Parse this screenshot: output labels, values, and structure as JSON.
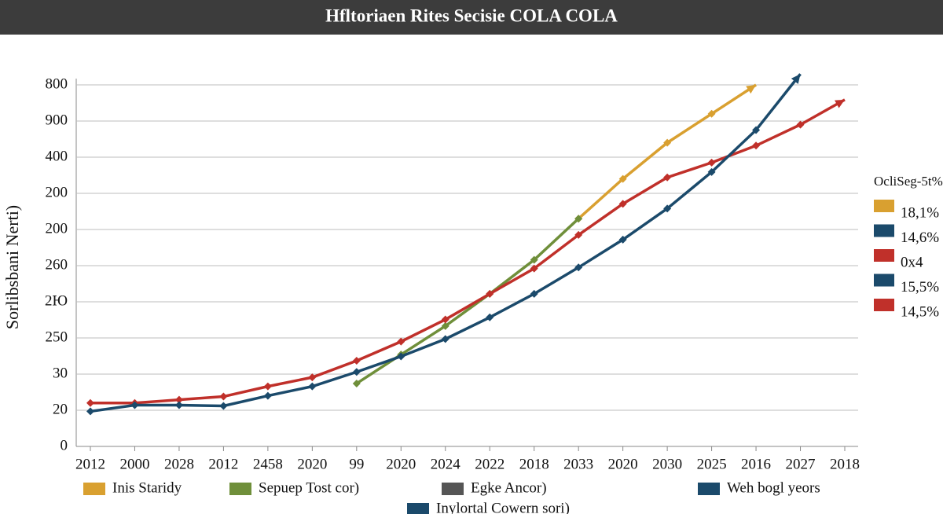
{
  "chart_data": {
    "type": "line",
    "title": "Hfltoriaen Rites Secisie COLA COLA",
    "y_label": "Sorlibsbani Nerti)",
    "categories": [
      "2012",
      "2000",
      "2028",
      "2012",
      "2458",
      "2020",
      "99",
      "2020",
      "2024",
      "2022",
      "2018",
      "2033",
      "2020",
      "2030",
      "2025",
      "2016",
      "2027",
      "2018"
    ],
    "ylim": [
      0,
      10.5
    ],
    "yticks": [
      {
        "value": 0,
        "label": "0"
      },
      {
        "value": 1,
        "label": "20"
      },
      {
        "value": 2,
        "label": "30"
      },
      {
        "value": 3,
        "label": "250"
      },
      {
        "value": 4,
        "label": "2Ю"
      },
      {
        "value": 5,
        "label": "260"
      },
      {
        "value": 6,
        "label": "200"
      },
      {
        "value": 7,
        "label": "200"
      },
      {
        "value": 8,
        "label": "400"
      },
      {
        "value": 9,
        "label": "900"
      },
      {
        "value": 10,
        "label": "800"
      }
    ],
    "grid": true,
    "series": [
      {
        "name": "Inis Staridy",
        "color": "#d9a030",
        "values": [
          null,
          null,
          null,
          null,
          null,
          null,
          null,
          null,
          null,
          null,
          null,
          6.3,
          7.4,
          8.4,
          9.2,
          10.0,
          null,
          null
        ]
      },
      {
        "name": "Sepuep Tost cor)",
        "color": "#6f8f3a",
        "values": [
          null,
          null,
          null,
          null,
          null,
          null,
          1.74,
          2.54,
          3.33,
          4.22,
          5.16,
          6.3,
          null,
          null,
          null,
          null,
          null,
          null
        ]
      },
      {
        "color": "#c0302a",
        "values": [
          1.2,
          1.2,
          1.29,
          1.38,
          1.66,
          1.91,
          2.37,
          2.9,
          3.51,
          4.22,
          4.92,
          5.85,
          6.71,
          7.44,
          7.85,
          8.32,
          8.9,
          9.59
        ]
      },
      {
        "name": "Weh bogl yeors",
        "color": "#1b4a6b",
        "values": [
          0.97,
          1.14,
          1.14,
          1.12,
          1.4,
          1.66,
          2.06,
          2.49,
          2.97,
          3.57,
          4.22,
          4.95,
          5.72,
          6.58,
          7.59,
          8.75,
          10.3,
          null
        ]
      }
    ],
    "extra_legend": [
      {
        "name": "Egke Ancor)",
        "color": "#555555"
      },
      {
        "name": "Inylortal Cowern sori)",
        "color": "#1b4a6b"
      }
    ],
    "side_legend": {
      "title": "OcliSeg-5t%",
      "items": [
        {
          "label": "18,1%",
          "color": "#d9a030"
        },
        {
          "label": "14,6%",
          "color": "#1b4a6b"
        },
        {
          "label": "0x4",
          "color": "#c0302a"
        },
        {
          "label": "15,5%",
          "color": "#1b4a6b"
        },
        {
          "label": "14,5%",
          "color": "#c0302a"
        }
      ]
    }
  }
}
